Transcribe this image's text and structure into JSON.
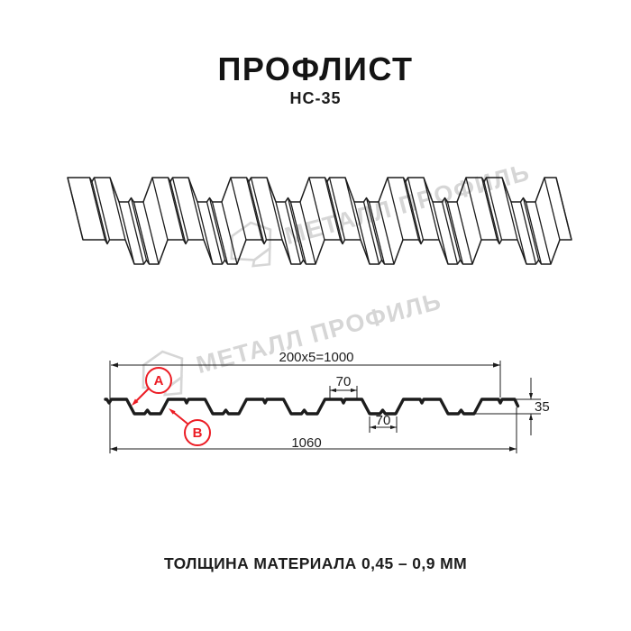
{
  "header": {
    "title": "ПРОФЛИСТ",
    "subtitle": "НС-35"
  },
  "watermark": {
    "text": "МЕТАЛЛ ПРОФИЛЬ"
  },
  "dimensions": {
    "working_width": "200x5=1000",
    "crest_width": "70",
    "valley_width": "70",
    "profile_height": "35",
    "full_width": "1060"
  },
  "markers": {
    "a": "А",
    "b": "В"
  },
  "footer": {
    "caption": "ТОЛЩИНА МАТЕРИАЛА 0,45 – 0,9 ММ"
  },
  "colors": {
    "line": "#1c1c1c",
    "accent_red": "#ec1c24",
    "watermark_gray": "#d6d6d6"
  }
}
